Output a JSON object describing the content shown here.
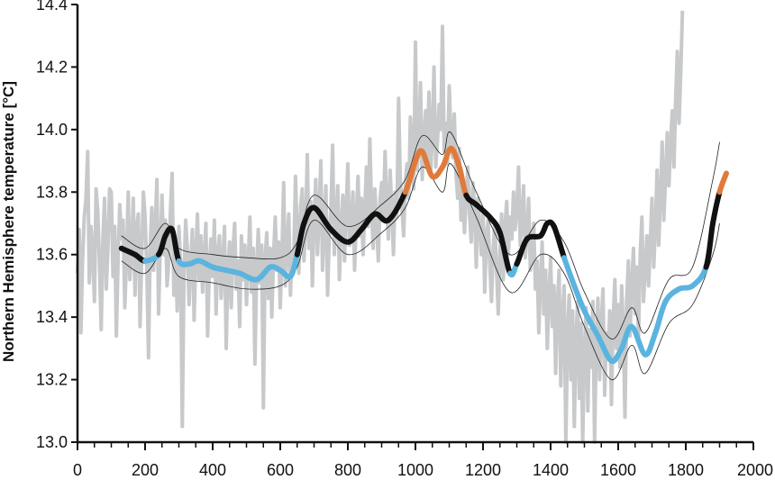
{
  "chart_data": {
    "type": "line",
    "title": "",
    "xlabel": "",
    "ylabel": "Northern Hemisphere temperature [°C]",
    "xlim": [
      0,
      2000
    ],
    "ylim": [
      13.0,
      14.4
    ],
    "x_ticks": [
      0,
      200,
      400,
      600,
      800,
      1000,
      1200,
      1400,
      1600,
      1800,
      2000
    ],
    "x_tick_labels": [
      "0",
      "200",
      "400",
      "600",
      "800",
      "1000",
      "1200",
      "1400",
      "1600",
      "1800",
      "2000"
    ],
    "y_ticks": [
      13.0,
      13.2,
      13.4,
      13.6,
      13.8,
      14.0,
      14.2,
      14.4
    ],
    "y_tick_labels": [
      "13.0",
      "13.2",
      "13.4",
      "13.6",
      "13.8",
      "14.0",
      "14.2",
      "14.4"
    ],
    "x_minor_tick_step": 50,
    "grid": false,
    "legend": "none",
    "colors": {
      "raw": "#c7c9cb",
      "neutral": "#111111",
      "cold": "#5ab4df",
      "warm": "#e07a3c",
      "band": "#222222",
      "axis": "#111111"
    },
    "series": [
      {
        "role": "smoothed",
        "x": [
          130,
          170,
          200,
          240,
          260,
          280,
          300,
          330,
          360,
          400,
          440,
          480,
          530,
          570,
          600,
          630,
          650,
          670,
          700,
          750,
          800,
          840,
          880,
          920,
          970,
          1000,
          1020,
          1050,
          1080,
          1105,
          1130,
          1150,
          1180,
          1220,
          1250,
          1280,
          1300,
          1330,
          1370,
          1390,
          1410,
          1440,
          1470,
          1500,
          1540,
          1580,
          1610,
          1640,
          1680,
          1710,
          1740,
          1780,
          1820,
          1860,
          1880,
          1900,
          1920
        ],
        "y": [
          13.62,
          13.6,
          13.58,
          13.6,
          13.66,
          13.68,
          13.58,
          13.57,
          13.58,
          13.56,
          13.55,
          13.54,
          13.52,
          13.56,
          13.55,
          13.53,
          13.6,
          13.7,
          13.75,
          13.68,
          13.64,
          13.68,
          13.73,
          13.71,
          13.8,
          13.9,
          13.93,
          13.85,
          13.88,
          13.94,
          13.88,
          13.79,
          13.76,
          13.72,
          13.67,
          13.54,
          13.57,
          13.65,
          13.66,
          13.7,
          13.69,
          13.59,
          13.5,
          13.42,
          13.34,
          13.26,
          13.3,
          13.37,
          13.28,
          13.35,
          13.45,
          13.49,
          13.5,
          13.56,
          13.7,
          13.8,
          13.86
        ],
        "segment_colors": [
          "neutral",
          "neutral",
          "cold",
          "neutral",
          "neutral",
          "neutral",
          "cold",
          "cold",
          "cold",
          "cold",
          "cold",
          "cold",
          "cold",
          "cold",
          "cold",
          "cold",
          "neutral",
          "neutral",
          "neutral",
          "neutral",
          "neutral",
          "neutral",
          "neutral",
          "neutral",
          "warm",
          "warm",
          "warm",
          "warm",
          "warm",
          "warm",
          "warm",
          "neutral",
          "neutral",
          "neutral",
          "neutral",
          "cold",
          "neutral",
          "neutral",
          "neutral",
          "neutral",
          "neutral",
          "cold",
          "cold",
          "cold",
          "cold",
          "cold",
          "cold",
          "cold",
          "cold",
          "cold",
          "cold",
          "cold",
          "cold",
          "neutral",
          "neutral",
          "warm"
        ]
      },
      {
        "role": "uncertainty-upper",
        "x": [
          130,
          200,
          260,
          300,
          400,
          500,
          600,
          650,
          700,
          800,
          900,
          970,
          1020,
          1080,
          1105,
          1180,
          1280,
          1370,
          1440,
          1500,
          1580,
          1640,
          1680,
          1750,
          1820,
          1880,
          1900
        ],
        "y": [
          13.66,
          13.62,
          13.7,
          13.62,
          13.6,
          13.59,
          13.59,
          13.64,
          13.79,
          13.69,
          13.76,
          13.84,
          13.98,
          13.92,
          13.99,
          13.8,
          13.6,
          13.71,
          13.64,
          13.48,
          13.33,
          13.43,
          13.35,
          13.52,
          13.56,
          13.84,
          13.96
        ]
      },
      {
        "role": "uncertainty-lower",
        "x": [
          130,
          200,
          260,
          300,
          400,
          500,
          600,
          650,
          700,
          800,
          900,
          970,
          1020,
          1080,
          1105,
          1180,
          1280,
          1370,
          1440,
          1500,
          1580,
          1640,
          1680,
          1750,
          1820,
          1880,
          1900
        ],
        "y": [
          13.58,
          13.54,
          13.62,
          13.53,
          13.51,
          13.49,
          13.5,
          13.56,
          13.71,
          13.6,
          13.67,
          13.75,
          13.88,
          13.8,
          13.89,
          13.72,
          13.48,
          13.6,
          13.54,
          13.37,
          13.2,
          13.31,
          13.22,
          13.38,
          13.44,
          13.6,
          13.7
        ]
      },
      {
        "role": "raw-annual-proxy",
        "x_start": 0,
        "x_step": 5,
        "y": [
          13.54,
          13.68,
          13.35,
          13.58,
          13.72,
          13.78,
          13.93,
          13.51,
          13.69,
          13.6,
          13.45,
          13.81,
          13.74,
          13.57,
          13.36,
          13.64,
          13.78,
          13.49,
          13.62,
          13.81,
          13.8,
          13.53,
          13.69,
          13.34,
          13.58,
          13.76,
          13.65,
          13.71,
          13.43,
          13.59,
          13.8,
          13.52,
          13.61,
          13.78,
          13.47,
          13.69,
          13.73,
          13.37,
          13.6,
          13.8,
          13.72,
          13.56,
          13.27,
          13.62,
          13.75,
          13.55,
          13.69,
          13.84,
          13.41,
          13.63,
          13.79,
          13.6,
          13.71,
          13.5,
          13.58,
          13.74,
          13.86,
          13.47,
          13.63,
          13.42,
          13.69,
          13.57,
          13.05,
          13.53,
          13.71,
          13.62,
          13.44,
          13.57,
          13.68,
          13.39,
          13.6,
          13.73,
          13.52,
          13.66,
          13.48,
          13.59,
          13.7,
          13.34,
          13.56,
          13.65,
          13.53,
          13.71,
          13.41,
          13.6,
          13.66,
          13.46,
          13.58,
          13.69,
          13.3,
          13.55,
          13.64,
          13.43,
          13.61,
          13.7,
          13.49,
          13.58,
          13.37,
          13.66,
          13.52,
          13.63,
          13.44,
          13.57,
          13.72,
          13.48,
          13.62,
          13.25,
          13.56,
          13.68,
          13.51,
          13.63,
          13.11,
          13.58,
          13.67,
          13.46,
          13.62,
          13.4,
          13.59,
          13.72,
          13.55,
          13.64,
          13.43,
          13.6,
          13.83,
          13.5,
          13.63,
          13.73,
          13.47,
          13.61,
          13.59,
          13.85,
          13.66,
          13.54,
          13.75,
          13.81,
          13.58,
          13.69,
          13.92,
          13.62,
          13.77,
          13.5,
          13.71,
          13.84,
          13.6,
          13.73,
          13.9,
          13.55,
          13.7,
          13.82,
          13.47,
          13.66,
          13.75,
          13.95,
          13.6,
          13.71,
          13.82,
          13.52,
          13.68,
          13.79,
          13.58,
          13.74,
          13.89,
          13.63,
          13.7,
          13.8,
          13.55,
          13.72,
          13.85,
          13.66,
          13.78,
          13.6,
          13.74,
          13.88,
          13.69,
          13.97,
          13.75,
          13.62,
          13.81,
          13.7,
          13.58,
          13.77,
          13.83,
          13.71,
          13.93,
          13.76,
          13.65,
          13.87,
          13.74,
          13.6,
          13.8,
          13.72,
          14.1,
          13.85,
          13.75,
          13.66,
          13.83,
          13.89,
          13.78,
          14.04,
          13.92,
          13.81,
          14.28,
          13.87,
          13.96,
          14.15,
          13.84,
          13.98,
          14.06,
          13.91,
          14.12,
          13.86,
          13.99,
          14.2,
          13.88,
          13.96,
          14.08,
          14.0,
          14.33,
          13.93,
          14.02,
          13.89,
          14.14,
          13.97,
          13.91,
          14.05,
          13.86,
          13.78,
          13.94,
          13.71,
          13.82,
          13.67,
          13.79,
          13.88,
          13.73,
          13.64,
          13.83,
          13.75,
          13.56,
          13.78,
          13.69,
          13.6,
          13.74,
          13.48,
          13.66,
          13.71,
          13.57,
          13.45,
          13.62,
          13.7,
          13.55,
          13.41,
          13.6,
          13.73,
          13.52,
          13.69,
          13.77,
          13.6,
          13.72,
          13.65,
          13.8,
          13.68,
          13.74,
          13.88,
          13.63,
          13.7,
          13.82,
          13.59,
          13.66,
          13.78,
          13.55,
          13.61,
          13.7,
          13.49,
          13.58,
          13.35,
          13.52,
          13.64,
          13.41,
          13.55,
          13.3,
          13.46,
          13.59,
          13.37,
          13.5,
          13.22,
          13.44,
          13.55,
          13.18,
          13.4,
          13.5,
          12.98,
          13.35,
          13.47,
          13.2,
          13.42,
          13.05,
          13.33,
          13.45,
          13.14,
          13.38,
          13.0,
          13.29,
          13.43,
          13.1,
          13.36,
          13.24,
          13.45,
          12.98,
          13.32,
          13.46,
          13.2,
          13.38,
          13.49,
          13.15,
          13.35,
          13.27,
          13.42,
          13.12,
          13.39,
          13.52,
          13.3,
          13.44,
          13.24,
          13.5,
          13.37,
          13.08,
          13.45,
          13.58,
          13.34,
          13.5,
          13.62,
          13.41,
          13.56,
          13.33,
          13.6,
          13.72,
          13.45,
          13.55,
          13.66,
          13.5,
          13.64,
          13.78,
          13.56,
          13.68,
          13.87,
          13.63,
          13.79,
          13.96,
          13.71,
          13.84,
          13.99,
          13.82,
          13.95,
          14.06,
          13.88,
          14.1,
          14.25,
          14.02,
          14.18,
          14.38
        ]
      }
    ]
  }
}
